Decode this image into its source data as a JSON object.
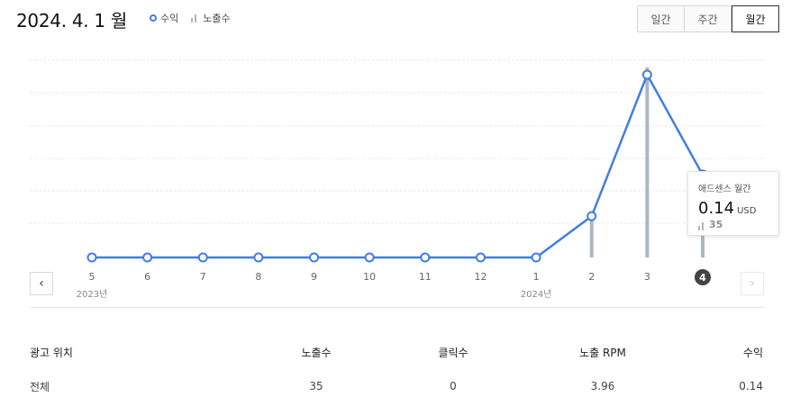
{
  "header": {
    "date": "2024. 4. 1 월",
    "legend": {
      "revenue": "수익",
      "impressions": "노출수"
    },
    "periods": [
      "일간",
      "주간",
      "월간"
    ],
    "active_period": "월간"
  },
  "colors": {
    "revenue_line": "#3f7fe0",
    "impression_bar": "#aeb6bf",
    "grid": "#e9e9e9"
  },
  "chart_data": {
    "type": "line",
    "categories": [
      "5",
      "6",
      "7",
      "8",
      "9",
      "10",
      "11",
      "12",
      "1",
      "2",
      "3",
      "4"
    ],
    "year_labels": [
      {
        "at": "5",
        "label": "2023년"
      },
      {
        "at": "1",
        "label": "2024년"
      }
    ],
    "selected": "4",
    "series": [
      {
        "name": "수익",
        "values": [
          0,
          0,
          0,
          0,
          0,
          0,
          0,
          0,
          0,
          0.07,
          0.31,
          0.14
        ]
      },
      {
        "name": "노출수",
        "values": [
          0,
          0,
          0,
          0,
          0,
          0,
          0,
          0,
          0,
          17,
          80,
          35
        ]
      }
    ]
  },
  "nav": {
    "prev": "‹",
    "next": "›"
  },
  "tooltip": {
    "title": "애드센스 월간",
    "value": "0.14",
    "unit": "USD",
    "impressions": "35"
  },
  "table": {
    "headers": [
      "광고 위치",
      "노출수",
      "클릭수",
      "노출 RPM",
      "수익"
    ],
    "rows": [
      [
        "전체",
        "35",
        "0",
        "3.96",
        "0.14"
      ]
    ]
  }
}
